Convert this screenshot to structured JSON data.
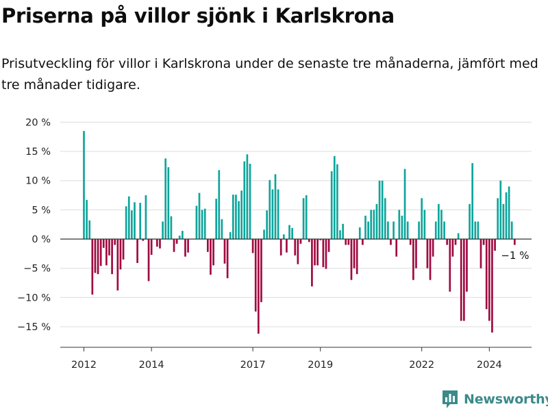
{
  "title": "Priserna på villor sjönk i Karlskrona",
  "subtitle": "Prisutveckling för villor i Karlskrona under de senaste tre månaderna, jämfört med tre månader tidigare.",
  "brand": {
    "name": "Newsworthy",
    "color": "#3c8a8a"
  },
  "chart_data": {
    "type": "bar",
    "y_unit": "%",
    "ylim": [
      -18,
      20
    ],
    "y_ticks": [
      20,
      15,
      10,
      5,
      0,
      -5,
      -10,
      -15
    ],
    "y_tick_labels": [
      "20 %",
      "15 %",
      "10 %",
      "5 %",
      "0 %",
      "−5 %",
      "−10 %",
      "−15 %"
    ],
    "x_ticks": [
      {
        "year": 2012,
        "label": "2012"
      },
      {
        "year": 2014,
        "label": "2014"
      },
      {
        "year": 2017,
        "label": "2017"
      },
      {
        "year": 2019,
        "label": "2019"
      },
      {
        "year": 2022,
        "label": "2022"
      },
      {
        "year": 2024,
        "label": "2024"
      }
    ],
    "start": "2012-01",
    "frequency": "monthly",
    "grid": true,
    "legend": "none",
    "colors": {
      "positive": "#0ea59c",
      "negative": "#a00a41"
    },
    "annotation": {
      "label": "−1 %",
      "at": "last"
    },
    "values": [
      18.5,
      6.7,
      3.2,
      -9.5,
      -5.8,
      -6,
      -4.6,
      -1.5,
      -4.5,
      -2.8,
      -6,
      -1,
      -8.8,
      -5.2,
      -3.5,
      5.6,
      7.3,
      4.9,
      6.3,
      -4.1,
      6.2,
      -0.3,
      7.5,
      -7.2,
      -2.7,
      0,
      -1.3,
      -1.6,
      3,
      13.8,
      12.3,
      3.9,
      -2.2,
      -0.8,
      0.6,
      1.4,
      -3,
      -2.3,
      0,
      0,
      5.7,
      7.9,
      5,
      5.2,
      -2.2,
      -6.1,
      -4.5,
      6.9,
      11.8,
      3.4,
      -4.2,
      -6.7,
      1.2,
      7.6,
      7.6,
      6.5,
      8.3,
      13.3,
      14.5,
      12.9,
      -2.4,
      -12.4,
      -16.2,
      -10.8,
      1.6,
      4.9,
      10.1,
      8.5,
      11.1,
      8.5,
      -2.8,
      0.8,
      -2.3,
      2.4,
      1.9,
      -2.8,
      -4.3,
      -0.8,
      7,
      7.5,
      -0.5,
      -8.1,
      -4.5,
      -4.5,
      -0.2,
      -4.8,
      -5.1,
      -2.2,
      11.6,
      14.2,
      12.8,
      1.5,
      2.6,
      -1,
      -1,
      -7,
      -5,
      -6,
      2,
      -1,
      4,
      3,
      5,
      5,
      6,
      10,
      10,
      7,
      3,
      -1,
      3,
      -3,
      5,
      4,
      12,
      3,
      -1,
      -7,
      -5,
      3,
      7,
      5,
      -5,
      -7,
      -3,
      3,
      6,
      5,
      3,
      -1,
      -9,
      -3,
      -1,
      1,
      -14,
      -14,
      -9,
      6,
      13,
      3,
      3,
      -5,
      -1,
      -12,
      -14,
      -16,
      -2,
      7,
      10,
      6,
      8,
      9,
      3,
      -1
    ]
  }
}
